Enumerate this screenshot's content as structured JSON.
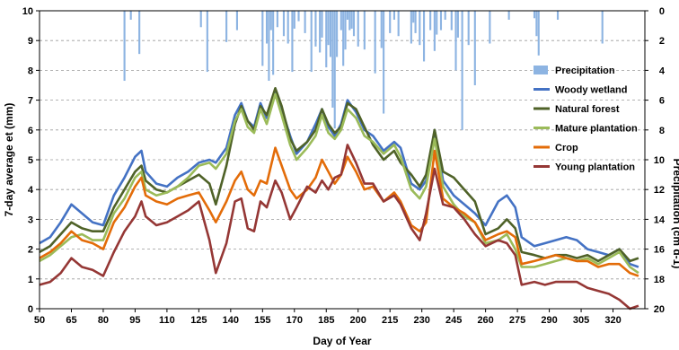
{
  "chart_data": {
    "type": "line",
    "title": "",
    "xlabel": "Day of Year",
    "ylabel": "7-day average et (mm)",
    "y2label": "Precipitation (cm d-1)",
    "xlim": [
      50,
      335
    ],
    "ylim": [
      0,
      10
    ],
    "y2lim": [
      0,
      20
    ],
    "y2_inverted": true,
    "x_ticks": [
      50,
      65,
      80,
      95,
      110,
      125,
      140,
      155,
      170,
      185,
      200,
      215,
      230,
      245,
      260,
      275,
      290,
      305,
      320
    ],
    "y_ticks": [
      0,
      1,
      2,
      3,
      4,
      5,
      6,
      7,
      8,
      9,
      10
    ],
    "y2_ticks": [
      0,
      2,
      4,
      6,
      8,
      10,
      12,
      14,
      16,
      18,
      20
    ],
    "grid": "horizontal dashed",
    "legend_position": "right",
    "precipitation": {
      "name": "Precipitation",
      "color": "#8db4e2",
      "days": [
        90,
        93,
        97,
        126,
        129,
        138,
        143,
        155,
        157,
        158,
        159,
        160,
        162,
        165,
        167,
        169,
        170,
        172,
        175,
        178,
        180,
        182,
        183,
        185,
        186,
        187,
        188,
        189,
        190,
        192,
        193,
        194,
        195,
        196,
        197,
        198,
        200,
        203,
        208,
        211,
        212,
        215,
        217,
        219,
        225,
        226,
        227,
        229,
        231,
        234,
        236,
        237,
        239,
        241,
        244,
        246,
        247,
        249,
        252,
        255,
        262,
        271,
        283,
        284,
        285,
        294,
        315
      ],
      "values": [
        4.7,
        0.6,
        2.9,
        1.1,
        4.1,
        2.1,
        1.3,
        3.7,
        2.2,
        4.7,
        1.3,
        4.3,
        1.1,
        1.7,
        2.2,
        4.1,
        1.2,
        0.7,
        1.5,
        4.1,
        2.4,
        2.8,
        1.8,
        3.8,
        2.3,
        3.1,
        6.5,
        7.9,
        3.1,
        1.3,
        3.7,
        2.6,
        0.6,
        1.3,
        1.2,
        1.7,
        2.4,
        2.6,
        4.2,
        2.5,
        6.9,
        1.5,
        0.6,
        1.7,
        2.2,
        0.8,
        1.5,
        2.3,
        3.4,
        1.3,
        2.7,
        1.6,
        1.3,
        0.6,
        1.3,
        4.0,
        1.8,
        8.0,
        2.3,
        5.0,
        2.2,
        0.6,
        0.5,
        1.7,
        3.0,
        0.6,
        2.2
      ]
    },
    "x": [
      50,
      55,
      60,
      65,
      70,
      75,
      80,
      85,
      90,
      95,
      98,
      100,
      105,
      110,
      115,
      120,
      125,
      130,
      133,
      138,
      142,
      145,
      148,
      151,
      154,
      157,
      161,
      164,
      168,
      171,
      176,
      180,
      183,
      186,
      189,
      192,
      195,
      199,
      203,
      207,
      212,
      217,
      220,
      225,
      229,
      232,
      236,
      240,
      245,
      250,
      255,
      260,
      266,
      270,
      274,
      277,
      283,
      288,
      293,
      298,
      303,
      308,
      313,
      318,
      323,
      328,
      332
    ],
    "series": [
      {
        "name": "Woody wetland",
        "color": "#4472c4",
        "values": [
          2.2,
          2.4,
          2.9,
          3.5,
          3.2,
          2.9,
          2.8,
          3.8,
          4.4,
          5.1,
          5.3,
          4.6,
          4.2,
          4.1,
          4.4,
          4.6,
          4.9,
          5.0,
          4.9,
          5.4,
          6.5,
          6.9,
          6.3,
          6.1,
          6.9,
          6.4,
          7.3,
          6.7,
          5.8,
          5.2,
          5.6,
          6.2,
          6.7,
          6.1,
          5.8,
          6.2,
          7.0,
          6.6,
          6.0,
          5.8,
          5.3,
          5.6,
          5.4,
          4.2,
          4.0,
          4.3,
          6.0,
          4.3,
          3.8,
          3.5,
          3.2,
          2.8,
          3.6,
          3.8,
          3.4,
          2.4,
          2.1,
          2.2,
          2.3,
          2.4,
          2.3,
          2.0,
          1.9,
          1.8,
          2.0,
          1.5,
          1.4
        ]
      },
      {
        "name": "Natural forest",
        "color": "#4f6228",
        "values": [
          1.9,
          2.1,
          2.5,
          2.9,
          2.7,
          2.6,
          2.6,
          3.4,
          4.0,
          4.6,
          4.8,
          4.3,
          4.0,
          3.9,
          4.1,
          4.3,
          4.5,
          4.2,
          3.5,
          4.8,
          6.2,
          6.8,
          6.3,
          6.0,
          6.8,
          6.5,
          7.4,
          6.8,
          5.7,
          5.3,
          5.6,
          6.0,
          6.7,
          6.2,
          5.9,
          6.1,
          6.9,
          6.7,
          6.1,
          5.5,
          5.0,
          5.3,
          4.9,
          4.5,
          4.1,
          4.5,
          6.0,
          4.6,
          4.4,
          4.0,
          3.6,
          2.5,
          2.7,
          3.0,
          2.7,
          1.9,
          1.8,
          1.7,
          1.8,
          1.8,
          1.7,
          1.8,
          1.6,
          1.8,
          2.0,
          1.6,
          1.7
        ]
      },
      {
        "name": "Mature plantation",
        "color": "#9bbb59",
        "values": [
          1.6,
          1.8,
          2.1,
          2.4,
          2.5,
          2.3,
          2.3,
          3.2,
          3.7,
          4.4,
          4.6,
          4.0,
          3.8,
          3.9,
          4.1,
          4.4,
          4.8,
          4.9,
          4.7,
          5.2,
          6.3,
          6.7,
          6.1,
          5.9,
          6.7,
          6.2,
          7.2,
          6.5,
          5.5,
          5.0,
          5.4,
          5.8,
          6.5,
          5.9,
          5.7,
          6.0,
          6.7,
          6.4,
          5.8,
          5.6,
          5.2,
          5.5,
          5.1,
          4.0,
          3.7,
          4.1,
          5.7,
          4.1,
          3.5,
          3.1,
          2.9,
          2.2,
          2.3,
          2.5,
          2.0,
          1.4,
          1.4,
          1.5,
          1.6,
          1.7,
          1.6,
          1.7,
          1.5,
          1.7,
          1.9,
          1.4,
          1.2
        ]
      },
      {
        "name": "Crop",
        "color": "#e36c09",
        "values": [
          1.7,
          1.9,
          2.2,
          2.6,
          2.3,
          2.2,
          2.0,
          2.9,
          3.4,
          4.1,
          4.4,
          3.8,
          3.6,
          3.5,
          3.7,
          3.8,
          3.9,
          3.3,
          2.9,
          3.6,
          4.3,
          4.6,
          4.0,
          3.8,
          4.3,
          4.2,
          5.4,
          4.8,
          4.0,
          3.7,
          4.0,
          4.4,
          5.0,
          4.6,
          4.2,
          4.5,
          5.1,
          4.6,
          4.0,
          4.1,
          3.6,
          3.9,
          3.6,
          2.8,
          2.6,
          2.9,
          5.3,
          3.7,
          3.4,
          3.2,
          2.9,
          2.3,
          2.5,
          2.6,
          2.4,
          1.5,
          1.6,
          1.7,
          1.8,
          1.7,
          1.6,
          1.6,
          1.4,
          1.5,
          1.5,
          1.2,
          1.1
        ]
      },
      {
        "name": "Young plantation",
        "color": "#953735",
        "values": [
          0.8,
          0.9,
          1.2,
          1.7,
          1.4,
          1.3,
          1.1,
          1.9,
          2.6,
          3.1,
          3.6,
          3.1,
          2.8,
          2.9,
          3.1,
          3.3,
          3.6,
          2.3,
          1.2,
          2.2,
          3.6,
          3.7,
          2.7,
          2.6,
          3.6,
          3.4,
          4.3,
          3.9,
          3.0,
          3.4,
          4.1,
          3.9,
          4.3,
          4.0,
          4.4,
          4.5,
          5.5,
          4.9,
          4.2,
          4.2,
          3.6,
          3.8,
          3.5,
          2.7,
          2.3,
          3.2,
          4.7,
          3.5,
          3.4,
          3.0,
          2.5,
          2.1,
          2.3,
          2.2,
          1.8,
          0.8,
          0.9,
          0.8,
          0.9,
          0.9,
          0.9,
          0.7,
          0.6,
          0.5,
          0.3,
          0.0,
          0.1
        ]
      }
    ]
  }
}
